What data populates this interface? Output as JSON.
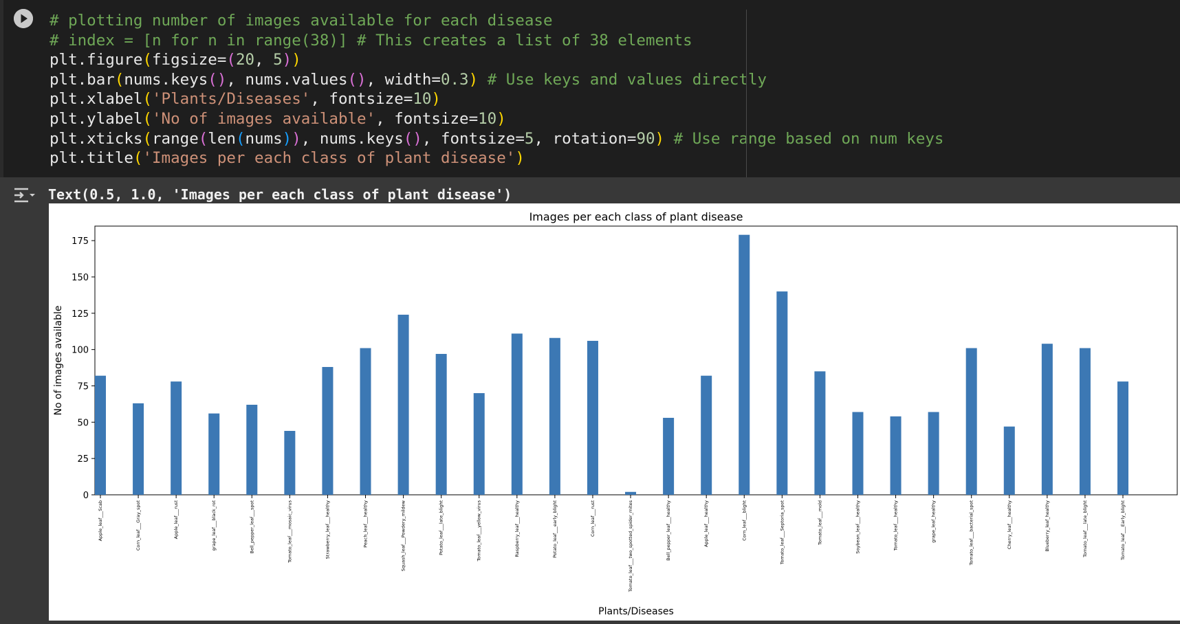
{
  "code_lines": [
    [
      [
        "cm",
        "# plotting number of images available for each disease"
      ]
    ],
    [
      [
        "cm",
        "# index = [n for n in range(38)] # This creates a list of 38 elements"
      ]
    ],
    [
      [
        "fn",
        "plt.figure"
      ],
      [
        "p1",
        "("
      ],
      [
        "fn",
        "figsize="
      ],
      [
        "p2",
        "("
      ],
      [
        "nm",
        "20"
      ],
      [
        "fn",
        ", "
      ],
      [
        "nm",
        "5"
      ],
      [
        "p2",
        ")"
      ],
      [
        "p1",
        ")"
      ]
    ],
    [
      [
        "fn",
        "plt.bar"
      ],
      [
        "p1",
        "("
      ],
      [
        "fn",
        "nums.keys"
      ],
      [
        "p2",
        "()"
      ],
      [
        "fn",
        ", nums.values"
      ],
      [
        "p2",
        "()"
      ],
      [
        "fn",
        ", width="
      ],
      [
        "nm",
        "0.3"
      ],
      [
        "p1",
        ")"
      ],
      [
        "fn",
        " "
      ],
      [
        "cm",
        "# Use keys and values directly"
      ]
    ],
    [
      [
        "fn",
        "plt.xlabel"
      ],
      [
        "p1",
        "("
      ],
      [
        "st",
        "'Plants/Diseases'"
      ],
      [
        "fn",
        ", fontsize="
      ],
      [
        "nm",
        "10"
      ],
      [
        "p1",
        ")"
      ]
    ],
    [
      [
        "fn",
        "plt.ylabel"
      ],
      [
        "p1",
        "("
      ],
      [
        "st",
        "'No of images available'"
      ],
      [
        "fn",
        ", fontsize="
      ],
      [
        "nm",
        "10"
      ],
      [
        "p1",
        ")"
      ]
    ],
    [
      [
        "fn",
        "plt.xticks"
      ],
      [
        "p1",
        "("
      ],
      [
        "fn",
        "range"
      ],
      [
        "p2",
        "("
      ],
      [
        "fn",
        "len"
      ],
      [
        "p3",
        "("
      ],
      [
        "fn",
        "nums"
      ],
      [
        "p3",
        ")"
      ],
      [
        "p2",
        ")"
      ],
      [
        "fn",
        ", nums.keys"
      ],
      [
        "p2",
        "()"
      ],
      [
        "fn",
        ", fontsize="
      ],
      [
        "nm",
        "5"
      ],
      [
        "fn",
        ", rotation="
      ],
      [
        "nm",
        "90"
      ],
      [
        "p1",
        ")"
      ],
      [
        "fn",
        " "
      ],
      [
        "cm",
        "# Use range based on num keys"
      ]
    ],
    [
      [
        "fn",
        "plt.title"
      ],
      [
        "p1",
        "("
      ],
      [
        "st",
        "'Images per each class of plant disease'"
      ],
      [
        "p1",
        ")"
      ]
    ]
  ],
  "output": {
    "result_text": "Text(0.5, 1.0, 'Images per each class of plant disease')"
  },
  "icons": {
    "run": "play-icon",
    "output_toggle": "output-collapse-icon"
  },
  "colors": {
    "bar": "#3c78b4"
  },
  "chart_data": {
    "type": "bar",
    "title": "Images per each class of plant disease",
    "xlabel": "Plants/Diseases",
    "ylabel": "No of images available",
    "ylim": [
      0,
      185
    ],
    "yticks": [
      0,
      25,
      50,
      75,
      100,
      125,
      150,
      175
    ],
    "categories": [
      "Apple_leaf___Scab",
      "Corn_leaf___Gray_spot",
      "Apple_leaf___rust",
      "grape_leaf___black_rot",
      "Bell_pepper_leaf___spot",
      "Tomato_leaf___mosaic_virus",
      "Strawberry_leaf___healthy",
      "Peach_leaf___healthy",
      "Squash_leaf___Powdery_mildew",
      "Potato_leaf___late_blight",
      "Tomato_leaf___yellow_virus",
      "Raspberry_leaf___healthy",
      "Potato_leaf___early_blight",
      "Corn_leaf___rust",
      "Tomato_leaf___two_spotted_spider_mites",
      "Bell_pepper_leaf___healthy",
      "Apple_leaf___healthy",
      "Corn_leaf___blight",
      "Tomato_leaf___Septoria_spot",
      "Tomato_leaf___mold",
      "Soybean_leaf___healthy",
      "Tomato_leaf___healthy",
      "grape_leaf_healthy",
      "Tomato_leaf___bacterial_spot",
      "Cherry_leaf___healthy",
      "Blueberry_leaf_healthy",
      "Tomato_leaf___late_blight",
      "Tomato_leaf___Early_blight"
    ],
    "values": [
      82,
      63,
      78,
      56,
      62,
      44,
      88,
      101,
      124,
      97,
      70,
      111,
      108,
      106,
      2,
      53,
      82,
      179,
      140,
      85,
      57,
      54,
      57,
      101,
      47,
      104,
      101,
      78
    ],
    "grid": false,
    "legend": "none"
  }
}
